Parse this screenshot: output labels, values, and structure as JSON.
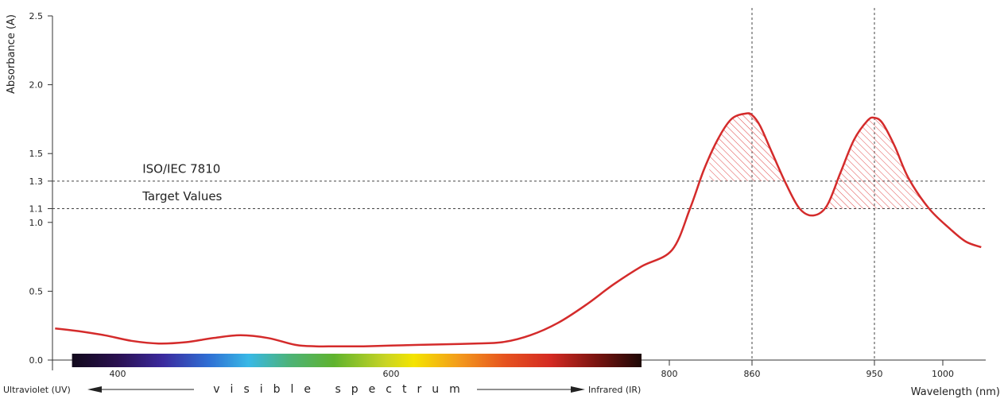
{
  "chart_data": {
    "type": "line",
    "title": "",
    "xlabel": "Wavelength (nm)",
    "ylabel": "Absorbance (A)",
    "ylim": [
      0,
      2.5
    ],
    "xlim": [
      350,
      1060
    ],
    "y_ticks": [
      0.0,
      0.5,
      1.0,
      1.1,
      1.3,
      1.5,
      2.0,
      2.5
    ],
    "y_tick_labels": [
      "0.0",
      "0.5",
      "1.0",
      "1.1",
      "1.3",
      "1.5",
      "2.0",
      "2.5"
    ],
    "x_ticks": [
      400,
      600,
      800,
      860,
      950,
      1000
    ],
    "x_tick_labels": [
      "400",
      "600",
      "800",
      "860",
      "950",
      "1000"
    ],
    "grid": false,
    "series": [
      {
        "color": "#d42b2b",
        "x": [
          352,
          370,
          390,
          410,
          430,
          450,
          470,
          490,
          510,
          530,
          545,
          560,
          580,
          600,
          620,
          640,
          660,
          680,
          700,
          720,
          740,
          760,
          780,
          802,
          815,
          825,
          835,
          845,
          855,
          860,
          866,
          875,
          885,
          895,
          905,
          915,
          925,
          935,
          945,
          950,
          956,
          965,
          975,
          990,
          1010,
          1030,
          1050
        ],
        "values": [
          0.23,
          0.21,
          0.18,
          0.14,
          0.12,
          0.13,
          0.16,
          0.18,
          0.16,
          0.11,
          0.1,
          0.1,
          0.1,
          0.105,
          0.11,
          0.115,
          0.12,
          0.13,
          0.18,
          0.27,
          0.4,
          0.55,
          0.68,
          0.8,
          1.1,
          1.38,
          1.6,
          1.75,
          1.79,
          1.78,
          1.7,
          1.5,
          1.28,
          1.1,
          1.05,
          1.12,
          1.36,
          1.6,
          1.74,
          1.76,
          1.72,
          1.55,
          1.32,
          1.1,
          0.95,
          0.86,
          0.82
        ]
      }
    ],
    "reference_lines": [
      {
        "axis": "y",
        "value": 1.3,
        "style": "dashed"
      },
      {
        "axis": "y",
        "value": 1.1,
        "style": "dashed"
      },
      {
        "axis": "x",
        "value": 860,
        "style": "dashed"
      },
      {
        "axis": "x",
        "value": 950,
        "style": "dashed"
      }
    ],
    "annotations": [
      {
        "text": "ISO/IEC 7810",
        "x": 485,
        "y": 1.36
      },
      {
        "text": "Target Values",
        "x": 485,
        "y": 1.16
      }
    ],
    "hatched_regions": [
      {
        "x_from": 829,
        "x_to": 893,
        "y_from": 1.3
      },
      {
        "x_from": 915,
        "x_to": 993,
        "y_from": 1.1
      }
    ],
    "spectrum": {
      "x_from": 365,
      "x_to": 780,
      "left_label": "Ultraviolet (UV)",
      "center_label": "visible spectrum",
      "right_label": "Infrared (IR)"
    }
  }
}
